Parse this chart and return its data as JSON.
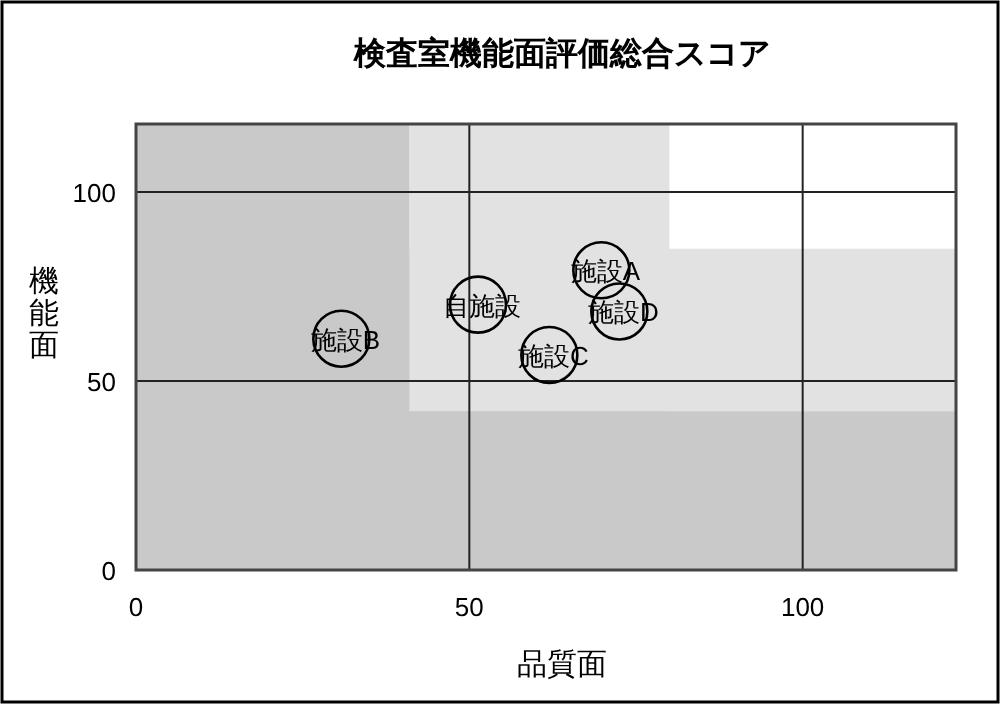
{
  "chart_data": {
    "type": "scatter",
    "title": "検査室機能面評価総合スコア",
    "xlabel": "品質面",
    "ylabel": "機能面",
    "xlim": [
      0,
      123
    ],
    "ylim": [
      0,
      118
    ],
    "xticks": [
      0,
      50,
      100
    ],
    "yticks": [
      0,
      50,
      100
    ],
    "grid": true,
    "marker": "circle",
    "bands": [
      {
        "axis": "y",
        "from": 42,
        "to": 118,
        "color": "#e2e2e2"
      },
      {
        "axis": "y",
        "from": 85,
        "to": 118,
        "color": "#ffffff"
      },
      {
        "axis": "x",
        "from": 41,
        "to": 80,
        "color": "#e2e2e2"
      },
      {
        "axis": "x",
        "from": 0,
        "to": 41,
        "color": "#c9c9c9"
      },
      {
        "axis": "y",
        "from": 0,
        "to": 42,
        "color": "#c9c9c9"
      }
    ],
    "series": [
      {
        "name": "自施設",
        "color": "#000000",
        "x": [
          51.3
        ],
        "values": [
          70.2
        ]
      },
      {
        "name": "施設A",
        "color": "#000000",
        "x": [
          69.8
        ],
        "values": [
          79.3
        ]
      },
      {
        "name": "施設B",
        "color": "#000000",
        "x": [
          30.8
        ],
        "values": [
          61.2
        ]
      },
      {
        "name": "施設C",
        "color": "#000000",
        "x": [
          62
        ],
        "values": [
          56.9
        ]
      },
      {
        "name": "施設D",
        "color": "#000000",
        "x": [
          72.5
        ],
        "values": [
          68.4
        ]
      }
    ]
  }
}
